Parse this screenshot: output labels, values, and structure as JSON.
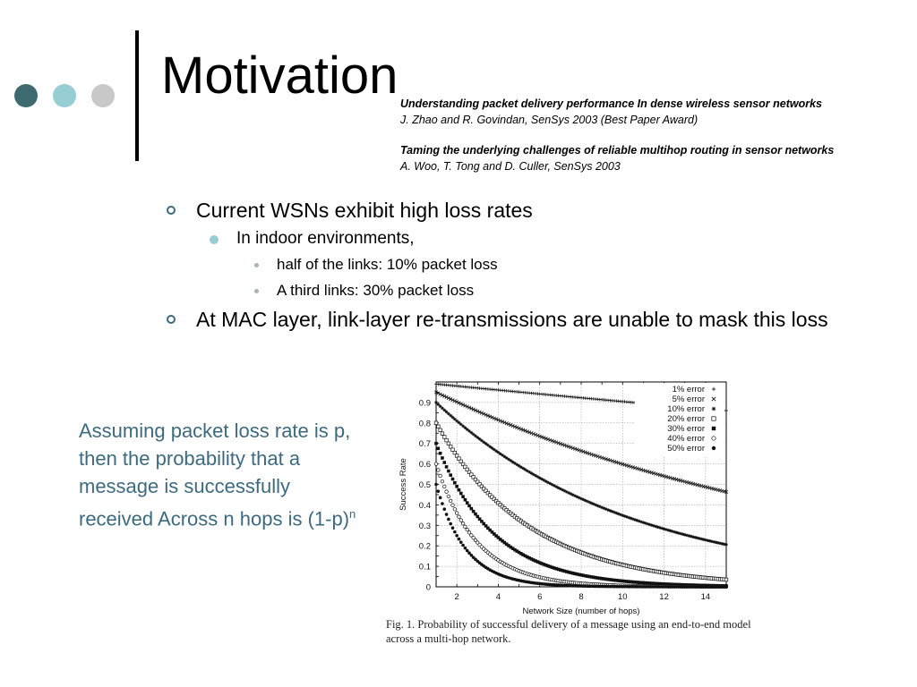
{
  "slide": {
    "title": "Motivation",
    "colors": {
      "dot_1": "#3d6a6e",
      "dot_2": "#96ced3",
      "dot_3": "#c8c8c8",
      "accent": "#3d6a7e"
    }
  },
  "references": [
    {
      "title": "Understanding packet delivery performance In dense wireless sensor networks",
      "authors": "J. Zhao and R. Govindan, SenSys 2003 (Best Paper Award)"
    },
    {
      "title": "Taming the underlying challenges of reliable multihop routing in sensor networks",
      "authors": "A. Woo, T. Tong and D. Culler, SenSys 2003"
    }
  ],
  "bullets": {
    "b1": "Current WSNs exhibit high loss rates",
    "b1_1": "In indoor environments,",
    "b1_1_1": "half of the links: 10% packet loss",
    "b1_1_2": "A third links: 30% packet loss",
    "b2": "At MAC layer, link-layer re-transmissions are unable to mask this loss"
  },
  "sidenote": {
    "text": "Assuming packet loss rate is p, then the probability that a message is successfully received Across n hops is (1-p)",
    "superscript": "n"
  },
  "chart_data": {
    "type": "scatter",
    "title": "",
    "xlabel": "Network Size (number of hops)",
    "ylabel": "Success Rate",
    "xlim": [
      1,
      15
    ],
    "ylim": [
      0,
      1
    ],
    "xticks": [
      "2",
      "4",
      "6",
      "8",
      "10",
      "12",
      "14"
    ],
    "yticks": [
      "0",
      "0.1",
      "0.2",
      "0.3",
      "0.4",
      "0.5",
      "0.6",
      "0.7",
      "0.8",
      "0.9"
    ],
    "grid": true,
    "legend_position": "top-right",
    "formula": "success = (1 - error)^hops",
    "series": [
      {
        "name": "1% error",
        "error_rate": 0.01,
        "marker": "+"
      },
      {
        "name": "5% error",
        "error_rate": 0.05,
        "marker": "x"
      },
      {
        "name": "10% error",
        "error_rate": 0.1,
        "marker": "*"
      },
      {
        "name": "20% error",
        "error_rate": 0.2,
        "marker": "square-open"
      },
      {
        "name": "30% error",
        "error_rate": 0.3,
        "marker": "square-filled"
      },
      {
        "name": "40% error",
        "error_rate": 0.4,
        "marker": "circle-open"
      },
      {
        "name": "50% error",
        "error_rate": 0.5,
        "marker": "circle-filled"
      }
    ]
  },
  "caption": "Fig. 1. Probability of successful delivery of a message using an end-to-end model across a multi-hop network."
}
